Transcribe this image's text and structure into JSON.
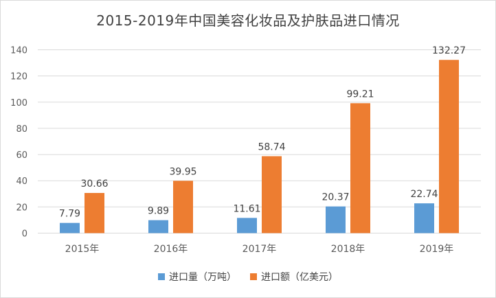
{
  "chart_data": {
    "type": "bar",
    "title": "2015-2019年中国美容化妆品及护肤品进口情况",
    "xlabel": "",
    "ylabel": "",
    "categories": [
      "2015年",
      "2016年",
      "2017年",
      "2018年",
      "2019年"
    ],
    "ylim": [
      0,
      140
    ],
    "yticks": [
      0,
      20,
      40,
      60,
      80,
      100,
      120,
      140
    ],
    "grid": true,
    "legend_position": "bottom",
    "series": [
      {
        "name": "进口量（万吨）",
        "color": "#5b9bd5",
        "values": [
          7.79,
          9.89,
          11.61,
          20.37,
          22.74
        ],
        "labels": [
          "7.79",
          "9.89",
          "11.61",
          "20.37",
          "22.74"
        ]
      },
      {
        "name": "进口额（亿美元）",
        "color": "#ed7d31",
        "values": [
          30.66,
          39.95,
          58.74,
          99.21,
          132.27
        ],
        "labels": [
          "30.66",
          "39.95",
          "58.74",
          "99.21",
          "132.27"
        ]
      }
    ]
  }
}
